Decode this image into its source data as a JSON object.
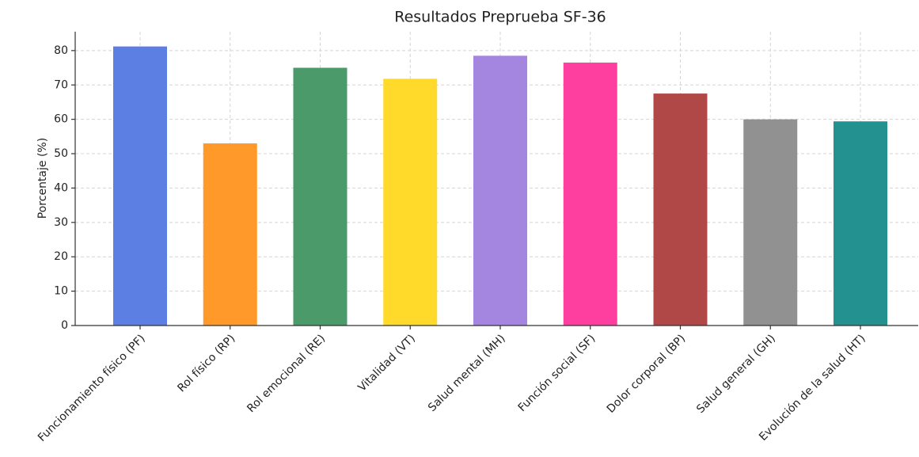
{
  "chart_data": {
    "type": "bar",
    "title": "Resultados Preprueba SF-36",
    "y_label": "Porcentaje (%)",
    "categories": [
      "Funcionamiento físico (PF)",
      "Rol físico (RP)",
      "Rol emocional (RE)",
      "Vitalidad (VT)",
      "Salud mental (MH)",
      "Función social (SF)",
      "Dolor corporal (BP)",
      "Salud general (GH)",
      "Evolución de la salud (HT)"
    ],
    "values": [
      81.2,
      53,
      75,
      71.8,
      78.5,
      76.5,
      67.5,
      60,
      59.4
    ],
    "colors": [
      "#5b7fe3",
      "#ff9a2a",
      "#4a9a6a",
      "#ffda2a",
      "#a485e0",
      "#ff3fa0",
      "#b04848",
      "#919191",
      "#22918f"
    ],
    "ylim": [
      0,
      85.5
    ],
    "yticks": [
      0,
      10,
      20,
      30,
      40,
      50,
      60,
      70,
      80
    ],
    "grid": true
  }
}
